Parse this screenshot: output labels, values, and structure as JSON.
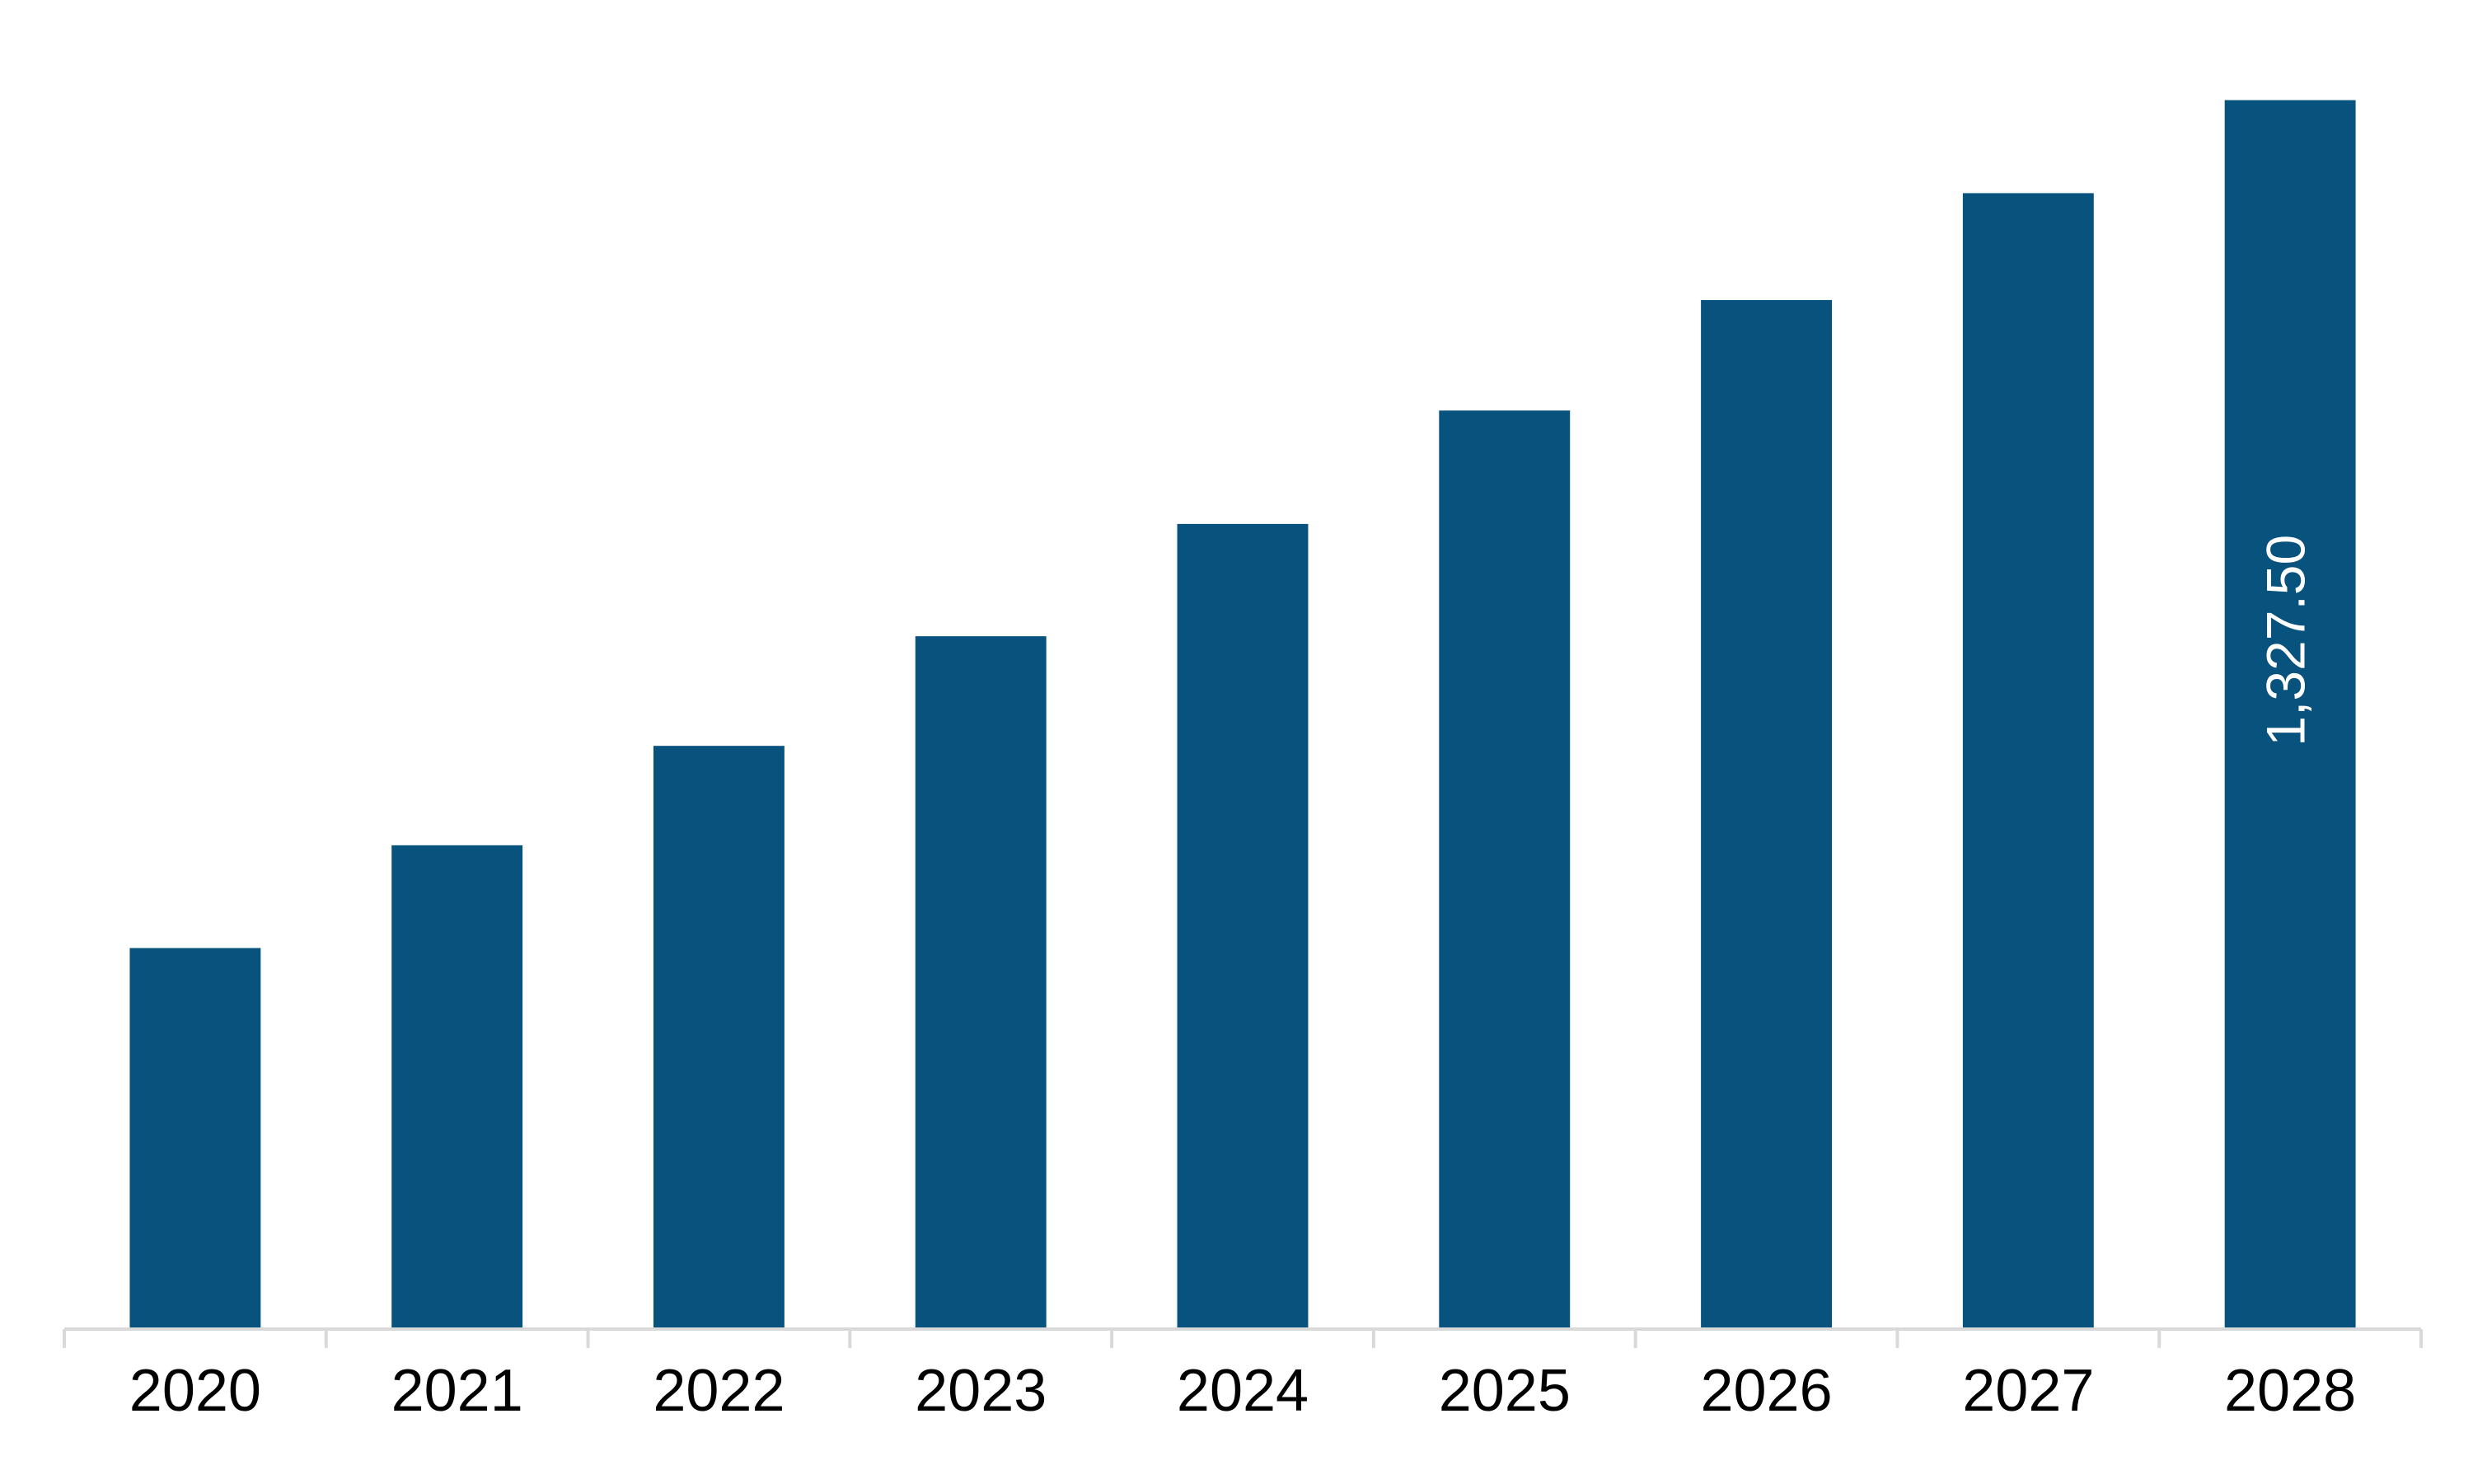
{
  "chart_data": {
    "type": "bar",
    "title": "",
    "xlabel": "",
    "ylabel": "",
    "categories": [
      "2020",
      "2021",
      "2022",
      "2023",
      "2024",
      "2025",
      "2026",
      "2027",
      "2028"
    ],
    "values": [
      411.6,
      522.6,
      630.0,
      748.4,
      869.7,
      992.2,
      1111.6,
      1227.0,
      1327.5
    ],
    "data_labels": [
      null,
      null,
      null,
      null,
      null,
      null,
      null,
      null,
      "1,327.50"
    ],
    "ylim": [
      0,
      1360
    ],
    "grid": false,
    "legend": "none",
    "colors": {
      "bar": "#08527E",
      "axis": "#D9D9D9",
      "tick_text": "#000000",
      "data_label_text": "#FFFFFF"
    }
  }
}
